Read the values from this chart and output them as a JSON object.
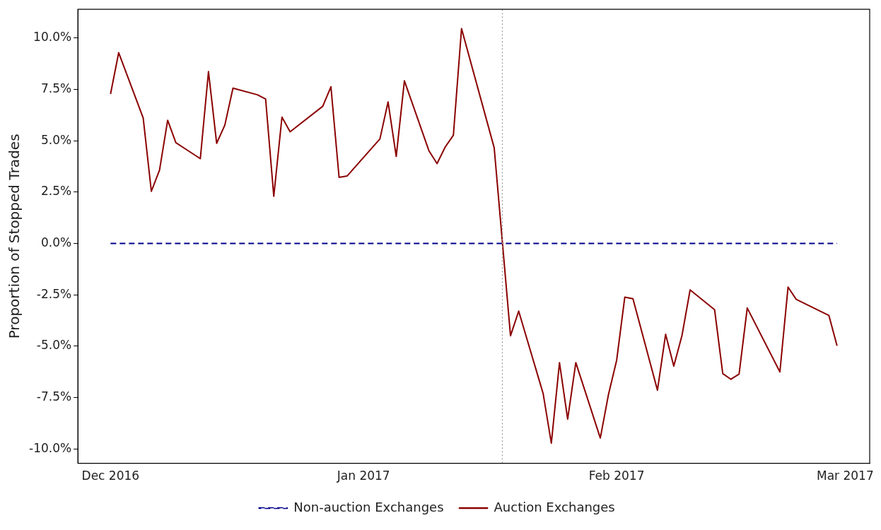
{
  "chart_data": {
    "type": "line",
    "ylabel": "Proportion of Stopped Trades",
    "x": [
      "2016-12-01",
      "2016-12-02",
      "2016-12-05",
      "2016-12-06",
      "2016-12-07",
      "2016-12-08",
      "2016-12-09",
      "2016-12-12",
      "2016-12-13",
      "2016-12-14",
      "2016-12-15",
      "2016-12-16",
      "2016-12-19",
      "2016-12-20",
      "2016-12-21",
      "2016-12-22",
      "2016-12-23",
      "2016-12-27",
      "2016-12-28",
      "2016-12-29",
      "2016-12-30",
      "2017-01-03",
      "2017-01-04",
      "2017-01-05",
      "2017-01-06",
      "2017-01-09",
      "2017-01-10",
      "2017-01-11",
      "2017-01-12",
      "2017-01-13",
      "2017-01-17",
      "2017-01-19",
      "2017-01-20",
      "2017-01-23",
      "2017-01-24",
      "2017-01-25",
      "2017-01-26",
      "2017-01-27",
      "2017-01-30",
      "2017-01-31",
      "2017-02-01",
      "2017-02-02",
      "2017-02-03",
      "2017-02-06",
      "2017-02-07",
      "2017-02-08",
      "2017-02-09",
      "2017-02-10",
      "2017-02-13",
      "2017-02-14",
      "2017-02-15",
      "2017-02-16",
      "2017-02-17",
      "2017-02-21",
      "2017-02-22",
      "2017-02-23",
      "2017-02-27",
      "2017-02-28"
    ],
    "series": [
      {
        "name": "Non-auction Exchanges",
        "color": "#00008b",
        "line_style": "dashed",
        "values": [
          0,
          0,
          0,
          0,
          0,
          0,
          0,
          0,
          0,
          0,
          0,
          0,
          0,
          0,
          0,
          0,
          0,
          0,
          0,
          0,
          0,
          0,
          0,
          0,
          0,
          0,
          0,
          0,
          0,
          0,
          0,
          0,
          0,
          0,
          0,
          0,
          0,
          0,
          0,
          0,
          0,
          0,
          0,
          0,
          0,
          0,
          0,
          0,
          0,
          0,
          0,
          0,
          0,
          0,
          0,
          0,
          0,
          0
        ]
      },
      {
        "name": "Auction Exchanges",
        "color": "#8b0000",
        "line_style": "solid",
        "values": [
          7.28,
          9.29,
          6.11,
          2.54,
          3.57,
          6.0,
          4.91,
          4.13,
          8.37,
          4.88,
          5.76,
          7.56,
          7.24,
          7.03,
          2.3,
          6.15,
          5.44,
          6.68,
          7.63,
          3.22,
          3.29,
          5.09,
          6.89,
          4.24,
          7.92,
          4.52,
          3.89,
          4.7,
          5.27,
          10.46,
          4.66,
          -4.49,
          -3.29,
          -7.31,
          -9.72,
          -5.8,
          -8.55,
          -5.8,
          -9.47,
          -7.35,
          -5.69,
          -2.61,
          -2.69,
          -7.14,
          -4.42,
          -5.97,
          -4.49,
          -2.26,
          -3.22,
          -6.33,
          -6.61,
          -6.36,
          -3.14,
          -6.25,
          -2.12,
          -2.72,
          -3.5,
          -4.98
        ]
      }
    ],
    "xlim": [
      "2016-11-27",
      "2017-03-04"
    ],
    "xticks": [
      {
        "value": "2016-12-01",
        "label": "Dec 2016"
      },
      {
        "value": "2017-01-01",
        "label": "Jan 2017"
      },
      {
        "value": "2017-02-01",
        "label": "Feb 2017"
      },
      {
        "value": "2017-03-01",
        "label": "Mar 2017"
      }
    ],
    "ylim": [
      -10.7,
      11.4
    ],
    "yticks": [
      {
        "value": -10,
        "label": "-10.0%"
      },
      {
        "value": -7.5,
        "label": "-7.5%"
      },
      {
        "value": -5,
        "label": "-5.0%"
      },
      {
        "value": -2.5,
        "label": "-2.5%"
      },
      {
        "value": 0,
        "label": "0.0%"
      },
      {
        "value": 2.5,
        "label": "2.5%"
      },
      {
        "value": 5,
        "label": "5.0%"
      },
      {
        "value": 7.5,
        "label": "7.5%"
      },
      {
        "value": 10,
        "label": "10.0%"
      }
    ],
    "ref_lines": [
      {
        "axis": "x",
        "value": "2017-01-18",
        "color": "#999999",
        "line_style": "dotted"
      }
    ],
    "grid": false,
    "legend": "bottom",
    "marker": "none"
  }
}
